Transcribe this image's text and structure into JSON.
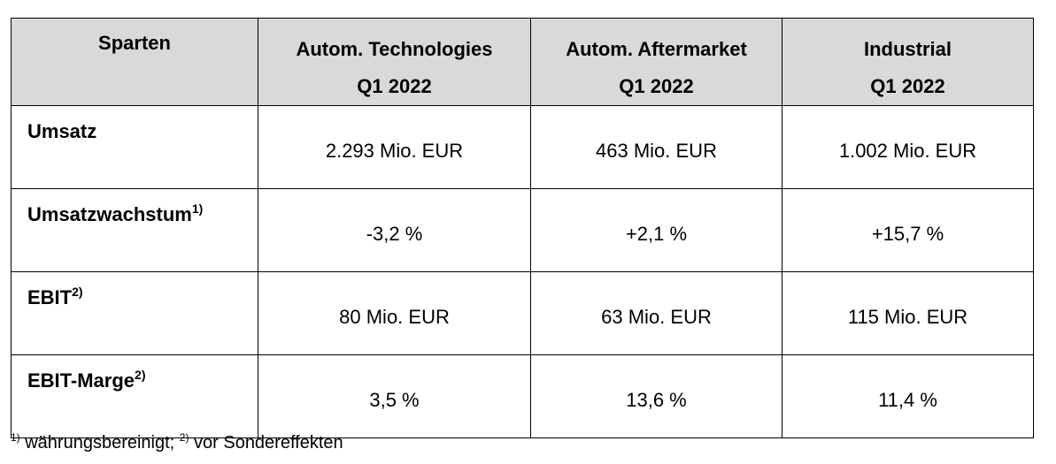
{
  "table": {
    "header": {
      "col0": "Sparten",
      "col1_line1": "Autom. Technologies",
      "col1_line2": "Q1 2022",
      "col2_line1": "Autom. Aftermarket",
      "col2_line2": "Q1 2022",
      "col3_line1": "Industrial",
      "col3_line2": "Q1 2022"
    },
    "rows": [
      {
        "label": "Umsatz",
        "footnote": "",
        "values": [
          "2.293 Mio. EUR",
          "463 Mio. EUR",
          "1.002 Mio. EUR"
        ]
      },
      {
        "label": "Umsatzwachstum",
        "footnote": "1)",
        "values": [
          "-3,2 %",
          "+2,1 %",
          "+15,7 %"
        ]
      },
      {
        "label": "EBIT",
        "footnote": "2)",
        "values": [
          "80 Mio. EUR",
          "63 Mio. EUR",
          "115 Mio. EUR"
        ]
      },
      {
        "label": "EBIT-Marge",
        "footnote": "2)",
        "values": [
          "3,5 %",
          "13,6 %",
          "11,4 %"
        ]
      }
    ]
  },
  "footnotes": {
    "marker1": "1)",
    "text1": " währungsbereinigt; ",
    "marker2": "2)",
    "text2": " vor Sondereffekten"
  }
}
